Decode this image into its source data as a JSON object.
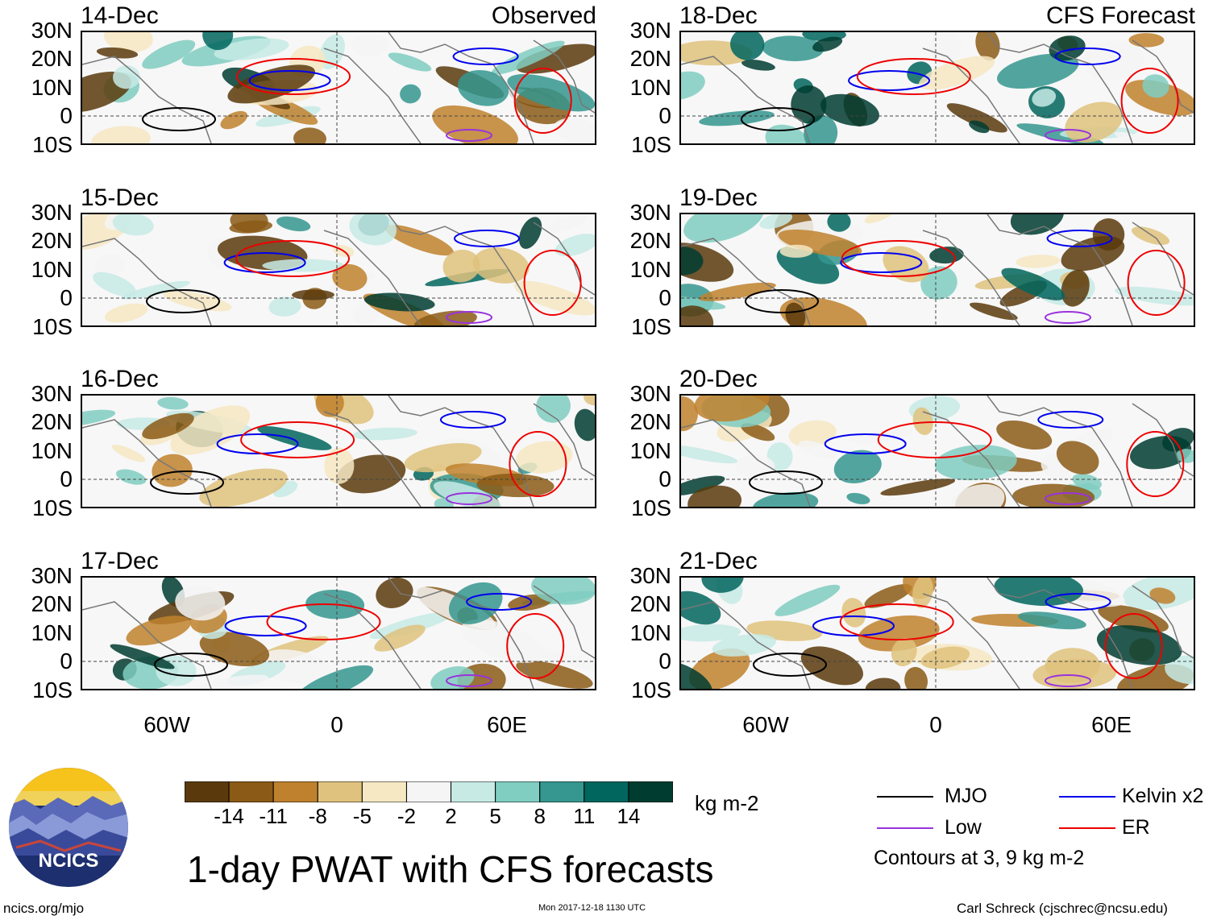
{
  "panels": [
    {
      "date": "14-Dec",
      "tag": "Observed"
    },
    {
      "date": "15-Dec",
      "tag": ""
    },
    {
      "date": "16-Dec",
      "tag": ""
    },
    {
      "date": "17-Dec",
      "tag": ""
    },
    {
      "date": "18-Dec",
      "tag": "CFS Forecast"
    },
    {
      "date": "19-Dec",
      "tag": ""
    },
    {
      "date": "20-Dec",
      "tag": ""
    },
    {
      "date": "21-Dec",
      "tag": ""
    }
  ],
  "lat_labels": [
    "30N",
    "20N",
    "10N",
    "0",
    "10S"
  ],
  "lon_labels": [
    "60W",
    "0",
    "60E"
  ],
  "colorbar": {
    "labels": [
      "-14",
      "-11",
      "-8",
      "-5",
      "-2",
      "2",
      "5",
      "8",
      "11",
      "14"
    ],
    "colors": [
      "#5a3a0c",
      "#8b5a16",
      "#bf812d",
      "#dfc27d",
      "#f6e8c3",
      "#f5f5f5",
      "#c7eae5",
      "#80cdc1",
      "#35978f",
      "#01665e",
      "#003c30"
    ],
    "units": "kg m-2"
  },
  "legend": {
    "mjo": "MJO",
    "kelvin": "Kelvin x2",
    "low": "Low",
    "er": "ER",
    "contours": "Contours at 3, 9 kg m-2",
    "colors": {
      "mjo": "#000000",
      "kelvin": "#0000ee",
      "low": "#9933dd",
      "er": "#ee0000"
    }
  },
  "title": "1-day PWAT with CFS forecasts",
  "logo_text": "NCICS",
  "footer": {
    "left": "ncics.org/mjo",
    "center": "Mon 2017-12-18 1130 UTC",
    "right": "Carl Schreck (cjschrec@ncsu.edu)"
  }
}
